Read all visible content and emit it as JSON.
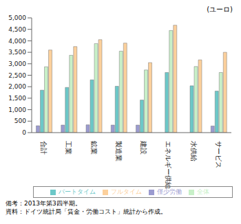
{
  "chart_data": {
    "type": "bar",
    "y_label": "(ユーロ)",
    "categories": [
      "合計",
      "工業",
      "鉱業",
      "製造業",
      "建設",
      "エネルギー供給",
      "水供給",
      "サービス"
    ],
    "series": [
      {
        "name": "僅少労働",
        "color": "#9b9bd0",
        "values": [
          300,
          330,
          340,
          330,
          330,
          null,
          null,
          290
        ]
      },
      {
        "name": "パートタイム",
        "color": "#6cc8c8",
        "values": [
          1850,
          1970,
          2300,
          2020,
          1420,
          2620,
          2040,
          1810
        ]
      },
      {
        "name": "全体",
        "color": "#c8f0c8",
        "values": [
          2870,
          3370,
          3880,
          3550,
          2730,
          4450,
          2880,
          2620
        ]
      },
      {
        "name": "フルタイム",
        "color": "#fcd09c",
        "values": [
          3600,
          3750,
          4050,
          3900,
          3050,
          4680,
          3170,
          3500
        ]
      }
    ],
    "ylim": [
      0,
      5000
    ],
    "yticks": [
      0,
      500,
      {
        "value": 1000,
        "label": "1,000"
      },
      {
        "value": 1500,
        "label": "1,500"
      },
      {
        "value": 2000,
        "label": "2,000"
      },
      {
        "value": 2500,
        "label": "2,500"
      },
      {
        "value": 3000,
        "label": "3,000"
      },
      {
        "value": 3500,
        "label": "3,500"
      },
      {
        "value": 4000,
        "label": "4,000"
      },
      {
        "value": 4500,
        "label": "4,500"
      },
      {
        "value": 5000,
        "label": "5,000"
      }
    ],
    "grid": false,
    "legend": "bottom",
    "annotations": [
      "備考：2013年第3四半期。",
      "資料：ドイツ統計局「賃金・労働コスト」統計から作成。"
    ]
  }
}
